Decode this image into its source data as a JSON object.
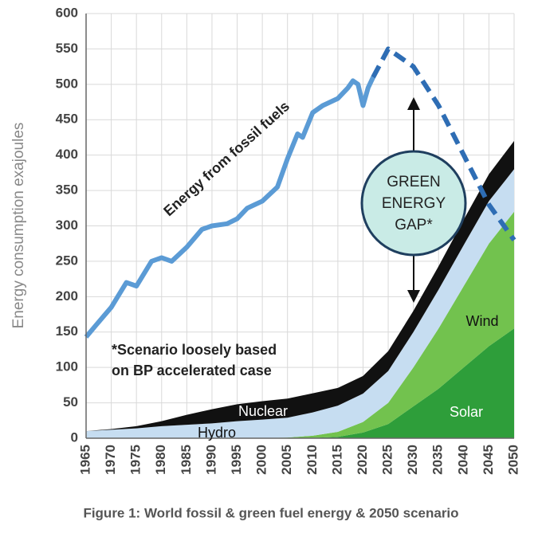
{
  "chart_data": {
    "type": "stacked-area-line",
    "y_label": "Energy consumption exajoules",
    "caption": "Figure 1: World fossil & green fuel  energy & 2050 scenario",
    "xlim": [
      1965,
      2050
    ],
    "xticks": [
      1965,
      1970,
      1975,
      1980,
      1985,
      1990,
      1995,
      2000,
      2005,
      2010,
      2015,
      2020,
      2025,
      2030,
      2035,
      2040,
      2045,
      2050
    ],
    "ylim": [
      0,
      600
    ],
    "yticks": [
      0,
      50,
      100,
      150,
      200,
      250,
      300,
      350,
      400,
      450,
      500,
      550,
      600
    ],
    "grid": true,
    "areas": {
      "x": [
        1965,
        1970,
        1975,
        1980,
        1985,
        1990,
        1995,
        2000,
        2005,
        2010,
        2015,
        2020,
        2025,
        2030,
        2035,
        2040,
        2045,
        2050
      ],
      "series": [
        {
          "name": "Solar",
          "color": "#2e9e3a",
          "values": [
            0,
            0,
            0,
            0,
            0,
            0,
            0,
            0,
            0,
            0.5,
            2,
            8,
            20,
            45,
            70,
            100,
            130,
            155
          ]
        },
        {
          "name": "Wind",
          "color": "#72c24e",
          "values": [
            0,
            0,
            0,
            0,
            0,
            0,
            0,
            0.3,
            1,
            3,
            7,
            15,
            30,
            55,
            85,
            115,
            145,
            165
          ]
        },
        {
          "name": "Hydro",
          "color": "#c6ddf1",
          "values": [
            10,
            12,
            14,
            17,
            19,
            21,
            24,
            26,
            28,
            33,
            37,
            40,
            45,
            50,
            55,
            58,
            60,
            60
          ]
        },
        {
          "name": "Nuclear",
          "color": "#111111",
          "values": [
            0,
            1,
            3,
            7,
            14,
            20,
            24,
            26,
            27,
            27,
            25,
            25,
            28,
            30,
            33,
            36,
            38,
            40
          ]
        }
      ]
    },
    "lines": [
      {
        "color": "#5b9bd5",
        "style": "solid",
        "x": [
          1965,
          1967,
          1970,
          1973,
          1975,
          1978,
          1980,
          1982,
          1985,
          1988,
          1990,
          1993,
          1995,
          1997,
          2000,
          2003,
          2005,
          2007,
          2008,
          2010,
          2012,
          2015,
          2017,
          2018,
          2019,
          2020,
          2021,
          2022
        ],
        "values": [
          143,
          160,
          185,
          220,
          215,
          250,
          255,
          250,
          270,
          295,
          300,
          303,
          310,
          325,
          335,
          355,
          395,
          430,
          425,
          460,
          470,
          480,
          495,
          505,
          500,
          470,
          495,
          510
        ]
      },
      {
        "color": "#2e6db4",
        "style": "dashed",
        "x": [
          2022,
          2025,
          2030,
          2035,
          2040,
          2045,
          2050
        ],
        "values": [
          510,
          550,
          525,
          470,
          400,
          330,
          280
        ]
      }
    ],
    "annotations": {
      "fossil": "Energy from fossil fuels",
      "scenario": [
        "*Scenario loosely based",
        "on BP accelerated case"
      ],
      "gap": [
        "GREEN",
        "ENERGY",
        "GAP*"
      ]
    }
  }
}
